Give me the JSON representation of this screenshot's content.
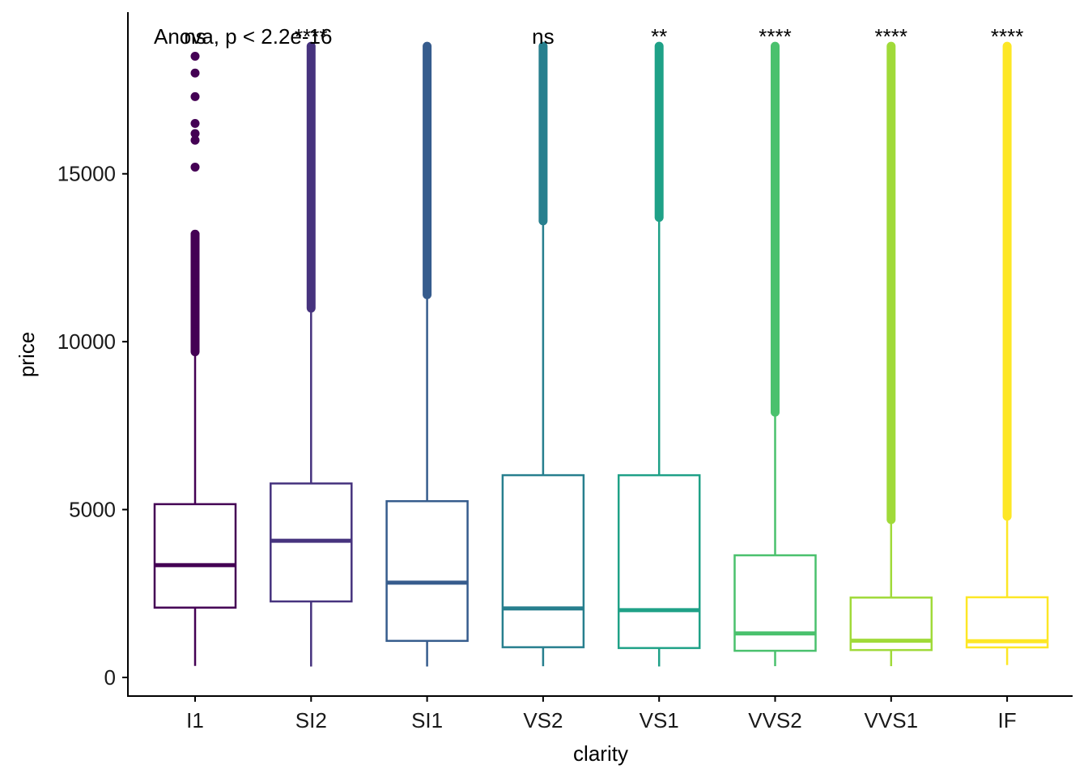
{
  "chart_data": {
    "type": "boxplot",
    "xlabel": "clarity",
    "ylabel": "price",
    "ylim": [
      -500,
      19500
    ],
    "y_ticks": [
      0,
      5000,
      10000,
      15000
    ],
    "y_tick_labels": [
      "0",
      "5000",
      "10000",
      "15000"
    ],
    "grid": false,
    "test_label": "Anova, p < 2.2e-16",
    "categories": [
      {
        "name": "I1",
        "color": "#440154",
        "min": 345,
        "q1": 2080,
        "median": 3344,
        "q3": 5161,
        "whisker_hi": 9700,
        "outlier_range": [
          9700,
          13200
        ],
        "outliers": [
          10300,
          10600,
          11000,
          11500,
          12000,
          12500,
          13200,
          15200,
          16000,
          16200,
          16500,
          17300,
          18000,
          18500
        ],
        "signif": "ns"
      },
      {
        "name": "SI2",
        "color": "#46337E",
        "min": 326,
        "q1": 2264,
        "median": 4072,
        "q3": 5777,
        "whisker_hi": 11000,
        "outlier_range": [
          11000,
          18800
        ],
        "outliers": [],
        "signif": "****"
      },
      {
        "name": "SI1",
        "color": "#365C8D",
        "min": 326,
        "q1": 1089,
        "median": 2822,
        "q3": 5250,
        "whisker_hi": 11400,
        "outlier_range": [
          11400,
          18800
        ],
        "outliers": [],
        "signif": ""
      },
      {
        "name": "VS2",
        "color": "#277F8E",
        "min": 334,
        "q1": 900,
        "median": 2054,
        "q3": 6024,
        "whisker_hi": 13600,
        "outlier_range": [
          13600,
          18800
        ],
        "outliers": [],
        "signif": "ns"
      },
      {
        "name": "VS1",
        "color": "#1FA187",
        "min": 327,
        "q1": 876,
        "median": 2005,
        "q3": 6023,
        "whisker_hi": 13700,
        "outlier_range": [
          13700,
          18800
        ],
        "outliers": [],
        "signif": "**"
      },
      {
        "name": "VVS2",
        "color": "#4AC16D",
        "min": 336,
        "q1": 794,
        "median": 1311,
        "q3": 3638,
        "whisker_hi": 7900,
        "outlier_range": [
          7900,
          18800
        ],
        "outliers": [],
        "signif": "****"
      },
      {
        "name": "VVS1",
        "color": "#A0DA39",
        "min": 336,
        "q1": 816,
        "median": 1093,
        "q3": 2379,
        "whisker_hi": 4700,
        "outlier_range": [
          4700,
          18800
        ],
        "outliers": [],
        "signif": "****"
      },
      {
        "name": "IF",
        "color": "#FDE725",
        "min": 369,
        "q1": 895,
        "median": 1080,
        "q3": 2388,
        "whisker_hi": 4800,
        "outlier_range": [
          4800,
          18800
        ],
        "outliers": [],
        "signif": "****"
      }
    ]
  }
}
